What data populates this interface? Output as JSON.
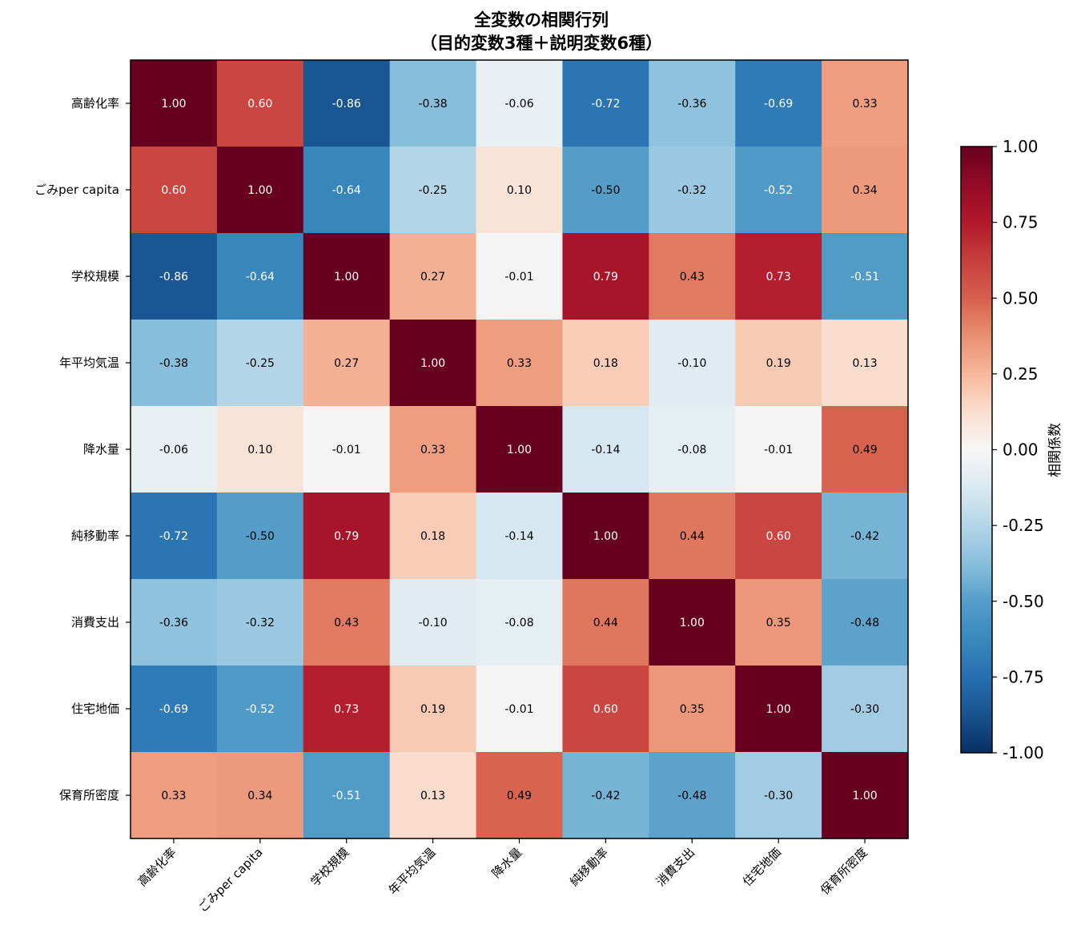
{
  "chart_data": {
    "type": "heatmap",
    "title_lines": [
      "全変数の相関行列",
      "（目的変数3種＋説明変数6種）"
    ],
    "labels": [
      "高齢化率",
      "ごみper capita",
      "学校規模",
      "年平均気温",
      "降水量",
      "純移動率",
      "消費支出",
      "住宅地価",
      "保育所密度"
    ],
    "matrix": [
      [
        1.0,
        0.6,
        -0.86,
        -0.38,
        -0.06,
        -0.72,
        -0.36,
        -0.69,
        0.33
      ],
      [
        0.6,
        1.0,
        -0.64,
        -0.25,
        0.1,
        -0.5,
        -0.32,
        -0.52,
        0.34
      ],
      [
        -0.86,
        -0.64,
        1.0,
        0.27,
        -0.01,
        0.79,
        0.43,
        0.73,
        -0.51
      ],
      [
        -0.38,
        -0.25,
        0.27,
        1.0,
        0.33,
        0.18,
        -0.1,
        0.19,
        0.13
      ],
      [
        -0.06,
        0.1,
        -0.01,
        0.33,
        1.0,
        -0.14,
        -0.08,
        -0.01,
        0.49
      ],
      [
        -0.72,
        -0.5,
        0.79,
        0.18,
        -0.14,
        1.0,
        0.44,
        0.6,
        -0.42
      ],
      [
        -0.36,
        -0.32,
        0.43,
        -0.1,
        -0.08,
        0.44,
        1.0,
        0.35,
        -0.48
      ],
      [
        -0.69,
        -0.52,
        0.73,
        0.19,
        -0.01,
        0.6,
        0.35,
        1.0,
        -0.3
      ],
      [
        0.33,
        0.34,
        -0.51,
        0.13,
        0.49,
        -0.42,
        -0.48,
        -0.3,
        1.0
      ]
    ],
    "value_range": [
      -1,
      1
    ],
    "colormap": "RdBu_r",
    "colorbar": {
      "label": "相関係数",
      "ticks": [
        1.0,
        0.75,
        0.5,
        0.25,
        0.0,
        -0.25,
        -0.5,
        -0.75,
        -1.0
      ],
      "tick_labels": [
        "1.00",
        "0.75",
        "0.50",
        "0.25",
        "0.00",
        "-0.25",
        "-0.50",
        "-0.75",
        "-1.00"
      ]
    },
    "text_color_rule": "white when |r| > 0.5, else black",
    "grid": false
  }
}
